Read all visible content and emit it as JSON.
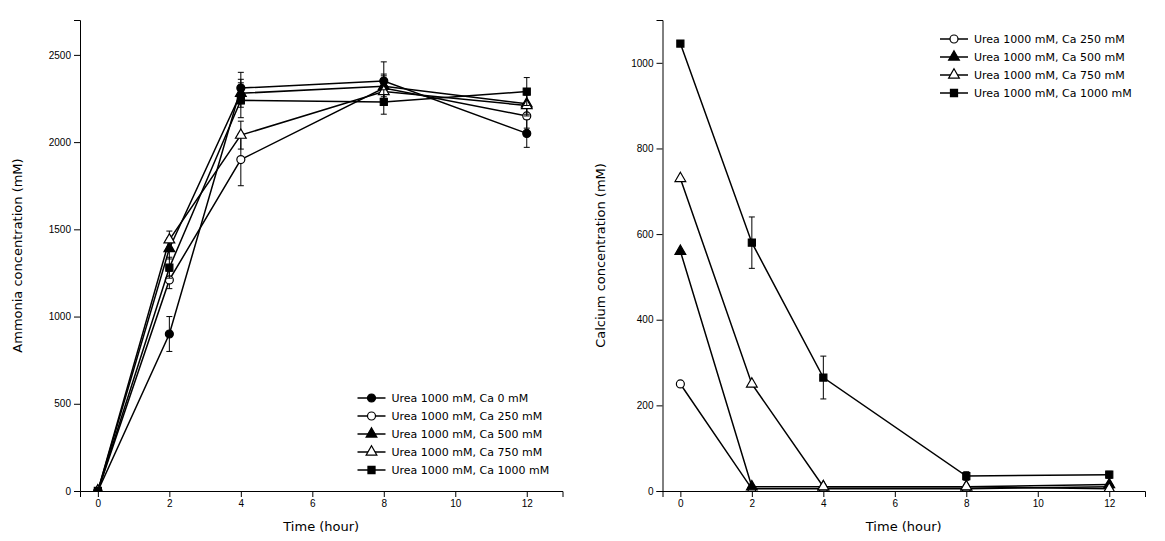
{
  "chart_data": [
    {
      "type": "line",
      "xlabel": "Time (hour)",
      "ylabel": "Ammonia concentration (mM)",
      "x": [
        0,
        2,
        4,
        8,
        12
      ],
      "xlim": [
        -0.5,
        13
      ],
      "xticks": [
        0,
        2,
        4,
        6,
        8,
        10,
        12
      ],
      "ylim": [
        0,
        2700
      ],
      "yticks": [
        0,
        500,
        1000,
        1500,
        2000,
        2500
      ],
      "grid": false,
      "legend": "lower right",
      "series": [
        {
          "name": "Urea 1000 mM, Ca 0 mM",
          "color": "#000000",
          "marker": "circle",
          "values": [
            0,
            900,
            2310,
            2350,
            2050
          ],
          "yerr": [
            0,
            100,
            90,
            110,
            80
          ]
        },
        {
          "name": "Urea 1000 mM, Ca 250 mM",
          "color": "#000000",
          "marker": "circle-open",
          "values": [
            0,
            1210,
            1900,
            2310,
            2150
          ],
          "yerr": [
            0,
            50,
            150,
            80,
            70
          ]
        },
        {
          "name": "Urea 1000 mM, Ca 500 mM",
          "color": "#000000",
          "marker": "triangle",
          "values": [
            0,
            1390,
            2280,
            2320,
            2220
          ],
          "yerr": [
            0,
            60,
            80,
            60,
            60
          ]
        },
        {
          "name": "Urea 1000 mM, Ca 750 mM",
          "color": "#000000",
          "marker": "triangle-open",
          "values": [
            0,
            1440,
            2040,
            2290,
            2210
          ],
          "yerr": [
            0,
            50,
            80,
            60,
            60
          ]
        },
        {
          "name": "Urea 1000 mM, Ca 1000 mM",
          "color": "#000000",
          "marker": "square",
          "values": [
            0,
            1280,
            2240,
            2230,
            2290
          ],
          "yerr": [
            0,
            60,
            100,
            70,
            80
          ]
        }
      ]
    },
    {
      "type": "line",
      "xlabel": "Time (hour)",
      "ylabel": "Calcium concentration (mM)",
      "x": [
        0,
        2,
        4,
        8,
        12
      ],
      "xlim": [
        -0.5,
        13
      ],
      "xticks": [
        0,
        2,
        4,
        6,
        8,
        10,
        12
      ],
      "ylim": [
        0,
        1100
      ],
      "yticks": [
        0,
        200,
        400,
        600,
        800,
        1000
      ],
      "grid": false,
      "legend": "upper right",
      "series": [
        {
          "name": "Urea 1000 mM, Ca 250 mM",
          "color": "#000000",
          "marker": "circle-open",
          "values": [
            250,
            5,
            5,
            5,
            10
          ],
          "yerr": [
            0,
            0,
            0,
            0,
            0
          ]
        },
        {
          "name": "Urea 1000 mM, Ca 500 mM",
          "color": "#000000",
          "marker": "triangle",
          "values": [
            560,
            10,
            10,
            10,
            15
          ],
          "yerr": [
            0,
            0,
            0,
            0,
            0
          ]
        },
        {
          "name": "Urea 1000 mM, Ca 750 mM",
          "color": "#000000",
          "marker": "triangle-open",
          "values": [
            730,
            250,
            10,
            10,
            5
          ],
          "yerr": [
            0,
            0,
            0,
            0,
            0
          ]
        },
        {
          "name": "Urea 1000 mM, Ca 1000 mM",
          "color": "#000000",
          "marker": "square",
          "values": [
            1045,
            580,
            265,
            35,
            38
          ],
          "yerr": [
            0,
            60,
            50,
            10,
            8
          ]
        }
      ]
    }
  ]
}
